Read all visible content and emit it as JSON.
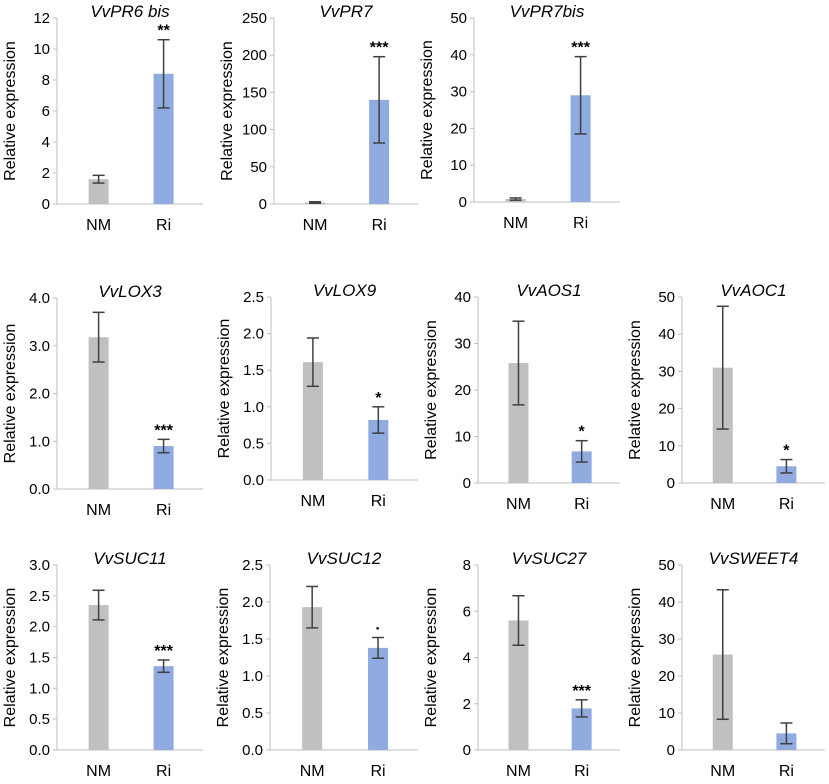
{
  "figure": {
    "colors": {
      "nm": "#c0c0c0",
      "ri": "#8fabe0",
      "axis": "#bfbfbf",
      "error": "#404040",
      "text": "#000000"
    },
    "ylabel": "Relative expression"
  },
  "chart_data": [
    {
      "type": "bar",
      "title": "VvPR6 bis",
      "ylabel": "Relative expression",
      "categories": [
        "NM",
        "Ri"
      ],
      "values": [
        1.6,
        8.4
      ],
      "errors": [
        0.25,
        2.2
      ],
      "significance": [
        "",
        "**"
      ],
      "ylim": [
        0,
        12
      ],
      "yticks": [
        "0",
        "2",
        "4",
        "6",
        "8",
        "10",
        "12"
      ]
    },
    {
      "type": "bar",
      "title": "VvPR7",
      "ylabel": "Relative expression",
      "categories": [
        "NM",
        "Ri"
      ],
      "values": [
        2,
        140
      ],
      "errors": [
        1,
        58
      ],
      "significance": [
        "",
        "***"
      ],
      "ylim": [
        0,
        250
      ],
      "yticks": [
        "0",
        "50",
        "100",
        "150",
        "200",
        "250"
      ]
    },
    {
      "type": "bar",
      "title": "VvPR7bis",
      "ylabel": "Relative expression",
      "categories": [
        "NM",
        "Ri"
      ],
      "values": [
        0.8,
        29
      ],
      "errors": [
        0.3,
        10.5
      ],
      "significance": [
        "",
        "***"
      ],
      "ylim": [
        0,
        50
      ],
      "yticks": [
        "0",
        "10",
        "20",
        "30",
        "40",
        "50"
      ]
    },
    {
      "type": "bar",
      "title": "VvLOX3",
      "ylabel": "Relative expression",
      "categories": [
        "NM",
        "Ri"
      ],
      "values": [
        3.18,
        0.9
      ],
      "errors": [
        0.52,
        0.14
      ],
      "significance": [
        "",
        "***"
      ],
      "ylim": [
        0,
        4
      ],
      "yticks": [
        "0.0",
        "1.0",
        "2.0",
        "3.0",
        "4.0"
      ]
    },
    {
      "type": "bar",
      "title": "VvLOX9",
      "ylabel": "Relative expression",
      "categories": [
        "NM",
        "Ri"
      ],
      "values": [
        1.61,
        0.82
      ],
      "errors": [
        0.33,
        0.18
      ],
      "significance": [
        "",
        "*"
      ],
      "ylim": [
        0,
        2.5
      ],
      "yticks": [
        "0.0",
        "0.5",
        "1.0",
        "1.5",
        "2.0",
        "2.5"
      ]
    },
    {
      "type": "bar",
      "title": "VvAOS1",
      "ylabel": "Relative expression",
      "categories": [
        "NM",
        "Ri"
      ],
      "values": [
        25.8,
        6.8
      ],
      "errors": [
        9,
        2.3
      ],
      "significance": [
        "",
        "*"
      ],
      "ylim": [
        0,
        40
      ],
      "yticks": [
        "0",
        "10",
        "20",
        "30",
        "40"
      ]
    },
    {
      "type": "bar",
      "title": "VvAOC1",
      "ylabel": "Relative expression",
      "categories": [
        "NM",
        "Ri"
      ],
      "values": [
        31,
        4.5
      ],
      "errors": [
        16.5,
        1.8
      ],
      "significance": [
        "",
        "*"
      ],
      "ylim": [
        0,
        50
      ],
      "yticks": [
        "0",
        "10",
        "20",
        "30",
        "40",
        "50"
      ]
    },
    {
      "type": "bar",
      "title": "VvSUC11",
      "ylabel": "Relative expression",
      "categories": [
        "NM",
        "Ri"
      ],
      "values": [
        2.35,
        1.36
      ],
      "errors": [
        0.24,
        0.1
      ],
      "significance": [
        "",
        "***"
      ],
      "ylim": [
        0,
        3
      ],
      "yticks": [
        "0.0",
        "0.5",
        "1.0",
        "1.5",
        "2.0",
        "2.5",
        "3.0"
      ]
    },
    {
      "type": "bar",
      "title": "VvSUC12",
      "ylabel": "Relative expression",
      "categories": [
        "NM",
        "Ri"
      ],
      "values": [
        1.93,
        1.38
      ],
      "errors": [
        0.28,
        0.14
      ],
      "significance": [
        "",
        "·"
      ],
      "ylim": [
        0,
        2.5
      ],
      "yticks": [
        "0.0",
        "0.5",
        "1.0",
        "1.5",
        "2.0",
        "2.5"
      ]
    },
    {
      "type": "bar",
      "title": "VvSUC27",
      "ylabel": "Relative expression",
      "categories": [
        "NM",
        "Ri"
      ],
      "values": [
        5.6,
        1.8
      ],
      "errors": [
        1.07,
        0.37
      ],
      "significance": [
        "",
        "***"
      ],
      "ylim": [
        0,
        8
      ],
      "yticks": [
        "0",
        "2",
        "4",
        "6",
        "8"
      ]
    },
    {
      "type": "bar",
      "title": "VvSWEET4",
      "ylabel": "Relative expression",
      "categories": [
        "NM",
        "Ri"
      ],
      "values": [
        25.8,
        4.5
      ],
      "errors": [
        17.5,
        2.8
      ],
      "significance": [
        "",
        ""
      ],
      "ylim": [
        0,
        50
      ],
      "yticks": [
        "0",
        "10",
        "20",
        "30",
        "40",
        "50"
      ]
    }
  ]
}
